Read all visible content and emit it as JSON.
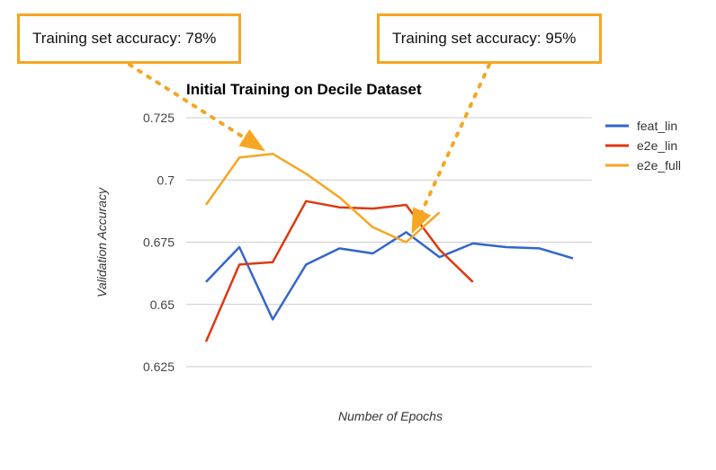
{
  "chart_data": {
    "type": "line",
    "title": "Initial Training on Decile Dataset",
    "xlabel": "Number of Epochs",
    "ylabel": "Validation Accuracy",
    "ylim": [
      0.625,
      0.725
    ],
    "yticks": [
      "0.725",
      "0.7",
      "0.675",
      "0.65",
      "0.625"
    ],
    "ytick_values": [
      0.725,
      0.7,
      0.675,
      0.65,
      0.625
    ],
    "grid": true,
    "legend_position": "right",
    "x": [
      1,
      2,
      3,
      4,
      5,
      6,
      7,
      8,
      9,
      10,
      11,
      12
    ],
    "series": [
      {
        "name": "feat_lin",
        "color": "#3366cc",
        "values": [
          0.659,
          0.673,
          0.644,
          0.666,
          0.6725,
          0.6705,
          0.679,
          0.669,
          0.6745,
          0.673,
          0.6725,
          0.6685
        ]
      },
      {
        "name": "e2e_lin",
        "color": "#dc3912",
        "values": [
          0.635,
          0.666,
          0.667,
          0.6915,
          0.689,
          0.6885,
          0.69,
          0.672,
          0.659,
          null,
          null,
          null
        ]
      },
      {
        "name": "e2e_full",
        "color": "#f5a623",
        "values": [
          0.69,
          0.709,
          0.7105,
          0.7025,
          0.693,
          0.681,
          0.675,
          0.687,
          null,
          null,
          null,
          null
        ]
      }
    ]
  },
  "callouts": [
    {
      "text": "Training set accuracy: 78%"
    },
    {
      "text": "Training set accuracy: 95%"
    }
  ],
  "accent_color": "#f5a623"
}
